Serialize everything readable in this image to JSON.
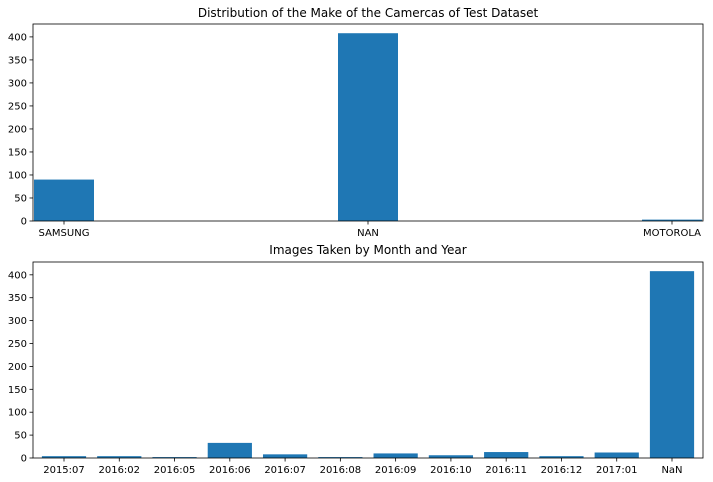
{
  "chart_data": [
    {
      "type": "bar",
      "title": "Distribution of the Make of the Camercas of Test Dataset",
      "xlabel": "",
      "ylabel": "",
      "categories": [
        "SAMSUNG",
        "NAN",
        "MOTOROLA"
      ],
      "values": [
        90,
        408,
        3
      ],
      "ylim": [
        0,
        428
      ],
      "yticks": [
        0,
        50,
        100,
        150,
        200,
        250,
        300,
        350,
        400
      ],
      "grid": false,
      "bar_color": "#1f77b4"
    },
    {
      "type": "bar",
      "title": "Images Taken by Month and Year",
      "xlabel": "",
      "ylabel": "",
      "categories": [
        "2015:07",
        "2016:02",
        "2016:05",
        "2016:06",
        "2016:07",
        "2016:08",
        "2016:09",
        "2016:10",
        "2016:11",
        "2016:12",
        "2017:01",
        "NaN"
      ],
      "values": [
        4,
        4,
        2,
        33,
        8,
        2,
        10,
        6,
        13,
        4,
        12,
        408
      ],
      "ylim": [
        0,
        428
      ],
      "yticks": [
        0,
        50,
        100,
        150,
        200,
        250,
        300,
        350,
        400
      ],
      "grid": false,
      "bar_color": "#1f77b4"
    }
  ]
}
